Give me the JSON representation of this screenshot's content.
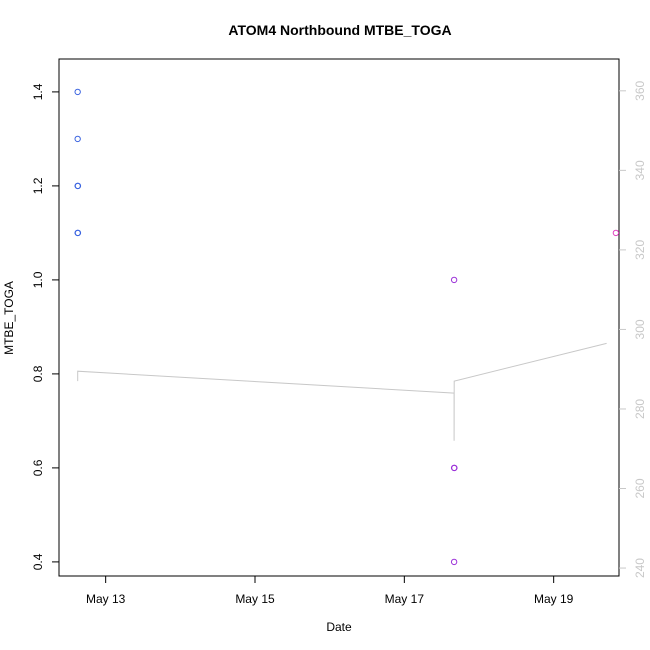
{
  "chart_data": {
    "type": "scatter",
    "title": "ATOM4 Northbound MTBE_TOGA",
    "xlabel": "Date",
    "ylabel": "MTBE_TOGA",
    "x_ticks": [
      "May 13",
      "May 15",
      "May 17",
      "May 19"
    ],
    "xlim": [
      "2024-05-12T09:00",
      "2024-05-19T21:00"
    ],
    "ylim": [
      0.37,
      1.47
    ],
    "y_ticks": [
      0.4,
      0.6,
      0.8,
      1.0,
      1.2,
      1.4
    ],
    "y_right_lim": [
      238,
      368
    ],
    "y_right_ticks": [
      240,
      260,
      280,
      300,
      320,
      340,
      360
    ],
    "grid": false,
    "series": [
      {
        "color": "#3b64e0",
        "points": [
          {
            "x": "2024-05-12T15:00",
            "y": 1.4
          },
          {
            "x": "2024-05-12T15:00",
            "y": 1.3
          },
          {
            "x": "2024-05-12T15:00",
            "y": 1.2
          },
          {
            "x": "2024-05-12T15:05",
            "y": 1.2
          },
          {
            "x": "2024-05-12T15:00",
            "y": 1.1
          },
          {
            "x": "2024-05-12T15:05",
            "y": 1.1
          }
        ]
      },
      {
        "color": "#9b30d8",
        "points": [
          {
            "x": "2024-05-17T16:00",
            "y": 1.0
          },
          {
            "x": "2024-05-17T16:00",
            "y": 0.6
          },
          {
            "x": "2024-05-17T16:05",
            "y": 0.6
          },
          {
            "x": "2024-05-17T16:00",
            "y": 0.4
          }
        ]
      },
      {
        "color": "#e040c0",
        "points": [
          {
            "x": "2024-05-19T20:00",
            "y": 1.1
          }
        ]
      }
    ],
    "right_line": {
      "color": "#c8c8c8",
      "points": [
        {
          "x": "2024-05-12T15:00",
          "y": 287
        },
        {
          "x": "2024-05-12T15:00",
          "y": 289.5
        },
        {
          "x": "2024-05-17T16:00",
          "y": 284
        },
        {
          "x": "2024-05-17T16:00",
          "y": 272
        },
        {
          "x": "2024-05-17T16:02",
          "y": 287
        },
        {
          "x": "2024-05-19T17:00",
          "y": 296.5
        }
      ]
    }
  }
}
